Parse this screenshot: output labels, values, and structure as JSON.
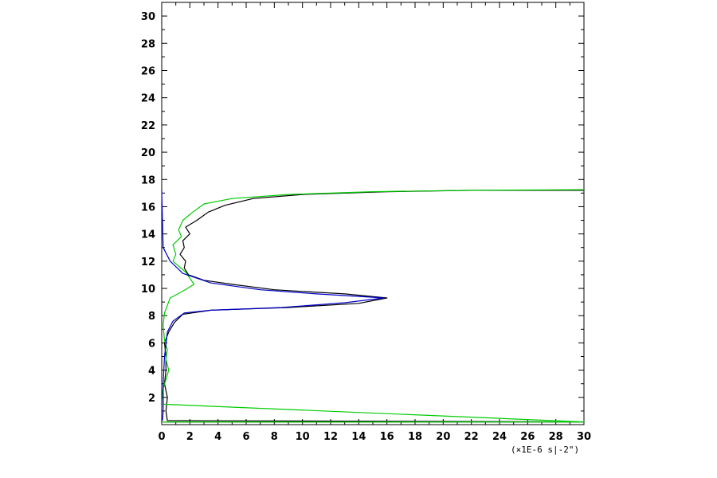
{
  "chart_data": {
    "type": "line",
    "title": "",
    "xlabel": "",
    "ylabel": "",
    "x_unit_label": "(×1E-6 s|-2\")",
    "xlim": [
      0,
      30
    ],
    "ylim": [
      0,
      31
    ],
    "x_ticks": [
      0,
      2,
      4,
      6,
      8,
      10,
      12,
      14,
      16,
      18,
      20,
      22,
      24,
      26,
      28,
      30
    ],
    "y_ticks": [
      2,
      4,
      6,
      8,
      10,
      12,
      14,
      16,
      18,
      20,
      22,
      24,
      26,
      28,
      30
    ],
    "grid": false,
    "legend": "none",
    "series": [
      {
        "color": "#000000",
        "points": [
          [
            0.1,
            0.2
          ],
          [
            30,
            0.2
          ],
          [
            0.4,
            0.3
          ],
          [
            0.3,
            1.0
          ],
          [
            0.4,
            2.0
          ],
          [
            0.2,
            3.0
          ],
          [
            0.3,
            4.0
          ],
          [
            0.3,
            5.0
          ],
          [
            0.2,
            6.0
          ],
          [
            0.5,
            6.8
          ],
          [
            0.9,
            7.5
          ],
          [
            1.5,
            8.1
          ],
          [
            3.5,
            8.4
          ],
          [
            9.0,
            8.6
          ],
          [
            14.0,
            8.9
          ],
          [
            16.0,
            9.3
          ],
          [
            13.0,
            9.6
          ],
          [
            8.0,
            9.9
          ],
          [
            5.0,
            10.3
          ],
          [
            3.0,
            10.6
          ],
          [
            1.9,
            11.0
          ],
          [
            1.6,
            11.5
          ],
          [
            1.7,
            12.0
          ],
          [
            1.3,
            12.5
          ],
          [
            1.6,
            13.0
          ],
          [
            1.5,
            13.5
          ],
          [
            2.0,
            14.0
          ],
          [
            1.7,
            14.5
          ],
          [
            2.5,
            15.0
          ],
          [
            3.3,
            15.6
          ],
          [
            4.5,
            16.1
          ],
          [
            6.5,
            16.6
          ],
          [
            10.0,
            16.9
          ],
          [
            16.0,
            17.1
          ],
          [
            22.0,
            17.2
          ],
          [
            30.0,
            17.2
          ]
        ]
      },
      {
        "color": "#00cc00",
        "points": [
          [
            0.05,
            0.2
          ],
          [
            30,
            0.2
          ],
          [
            0.1,
            1.5
          ],
          [
            0.05,
            2.5
          ],
          [
            0.3,
            3.3
          ],
          [
            0.5,
            4.0
          ],
          [
            0.3,
            4.8
          ],
          [
            0.4,
            5.5
          ],
          [
            0.2,
            6.2
          ],
          [
            0.1,
            7.3
          ],
          [
            0.2,
            8.2
          ],
          [
            0.6,
            9.3
          ],
          [
            1.5,
            9.8
          ],
          [
            2.3,
            10.3
          ],
          [
            1.7,
            11.2
          ],
          [
            0.8,
            12.0
          ],
          [
            1.0,
            12.5
          ],
          [
            0.8,
            13.2
          ],
          [
            1.4,
            13.8
          ],
          [
            1.2,
            14.3
          ],
          [
            1.5,
            15.0
          ],
          [
            2.2,
            15.6
          ],
          [
            3.0,
            16.2
          ],
          [
            5.0,
            16.6
          ],
          [
            9.0,
            16.9
          ],
          [
            15.0,
            17.1
          ],
          [
            22.0,
            17.2
          ],
          [
            30.0,
            17.25
          ]
        ]
      },
      {
        "color": "#0000cc",
        "points": [
          [
            0.0,
            17.2
          ],
          [
            0.05,
            15.0
          ],
          [
            0.1,
            13.0
          ],
          [
            0.6,
            12.0
          ],
          [
            1.5,
            11.1
          ],
          [
            3.5,
            10.4
          ],
          [
            7.0,
            9.9
          ],
          [
            11.0,
            9.6
          ],
          [
            15.8,
            9.3
          ],
          [
            13.0,
            8.95
          ],
          [
            8.5,
            8.6
          ],
          [
            3.5,
            8.4
          ],
          [
            1.6,
            8.2
          ],
          [
            0.8,
            7.6
          ],
          [
            0.4,
            6.8
          ],
          [
            0.2,
            5.0
          ],
          [
            0.1,
            3.0
          ],
          [
            0.1,
            1.0
          ],
          [
            0.05,
            0.3
          ]
        ]
      }
    ]
  }
}
